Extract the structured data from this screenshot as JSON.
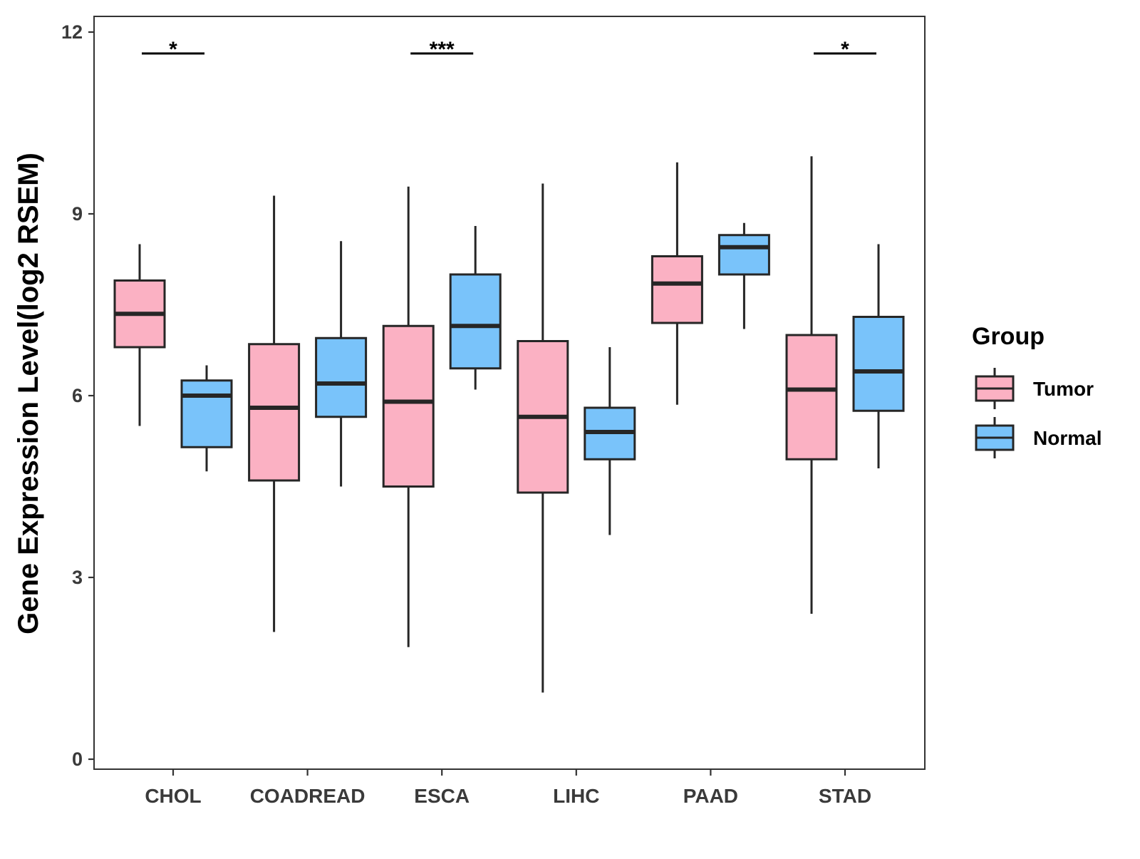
{
  "chart_data": {
    "type": "boxplot",
    "title": "",
    "xlabel": "",
    "ylabel": "Gene Expression Level(log2 RSEM)",
    "ylim": [
      0,
      12
    ],
    "yticks": [
      0,
      3,
      6,
      9,
      12
    ],
    "categories": [
      "CHOL",
      "COADREAD",
      "ESCA",
      "LIHC",
      "PAAD",
      "STAD"
    ],
    "legend": {
      "title": "Group",
      "position": "right",
      "entries": [
        "Tumor",
        "Normal"
      ]
    },
    "colors": {
      "Tumor": "#FBB1C3",
      "Normal": "#79C3FA",
      "stroke": "#262626"
    },
    "series": [
      {
        "name": "Tumor",
        "boxes": [
          {
            "category": "CHOL",
            "min": 5.5,
            "q1": 6.8,
            "median": 7.35,
            "q3": 7.9,
            "max": 8.5
          },
          {
            "category": "COADREAD",
            "min": 2.1,
            "q1": 4.6,
            "median": 5.8,
            "q3": 6.85,
            "max": 9.3
          },
          {
            "category": "ESCA",
            "min": 1.85,
            "q1": 4.5,
            "median": 5.9,
            "q3": 7.15,
            "max": 9.45
          },
          {
            "category": "LIHC",
            "min": 1.1,
            "q1": 4.4,
            "median": 5.65,
            "q3": 6.9,
            "max": 9.5
          },
          {
            "category": "PAAD",
            "min": 5.85,
            "q1": 7.2,
            "median": 7.85,
            "q3": 8.3,
            "max": 9.85
          },
          {
            "category": "STAD",
            "min": 2.4,
            "q1": 4.95,
            "median": 6.1,
            "q3": 7.0,
            "max": 9.95
          }
        ]
      },
      {
        "name": "Normal",
        "boxes": [
          {
            "category": "CHOL",
            "min": 4.75,
            "q1": 5.15,
            "median": 6.0,
            "q3": 6.25,
            "max": 6.5
          },
          {
            "category": "COADREAD",
            "min": 4.5,
            "q1": 5.65,
            "median": 6.2,
            "q3": 6.95,
            "max": 8.55
          },
          {
            "category": "ESCA",
            "min": 6.1,
            "q1": 6.45,
            "median": 7.15,
            "q3": 8.0,
            "max": 8.8
          },
          {
            "category": "LIHC",
            "min": 3.7,
            "q1": 4.95,
            "median": 5.4,
            "q3": 5.8,
            "max": 6.8
          },
          {
            "category": "PAAD",
            "min": 7.1,
            "q1": 8.0,
            "median": 8.45,
            "q3": 8.65,
            "max": 8.85
          },
          {
            "category": "STAD",
            "min": 4.8,
            "q1": 5.75,
            "median": 6.4,
            "q3": 7.3,
            "max": 8.5
          }
        ]
      }
    ],
    "significance": [
      {
        "category": "CHOL",
        "label": "*"
      },
      {
        "category": "ESCA",
        "label": "***"
      },
      {
        "category": "STAD",
        "label": "*"
      }
    ]
  }
}
